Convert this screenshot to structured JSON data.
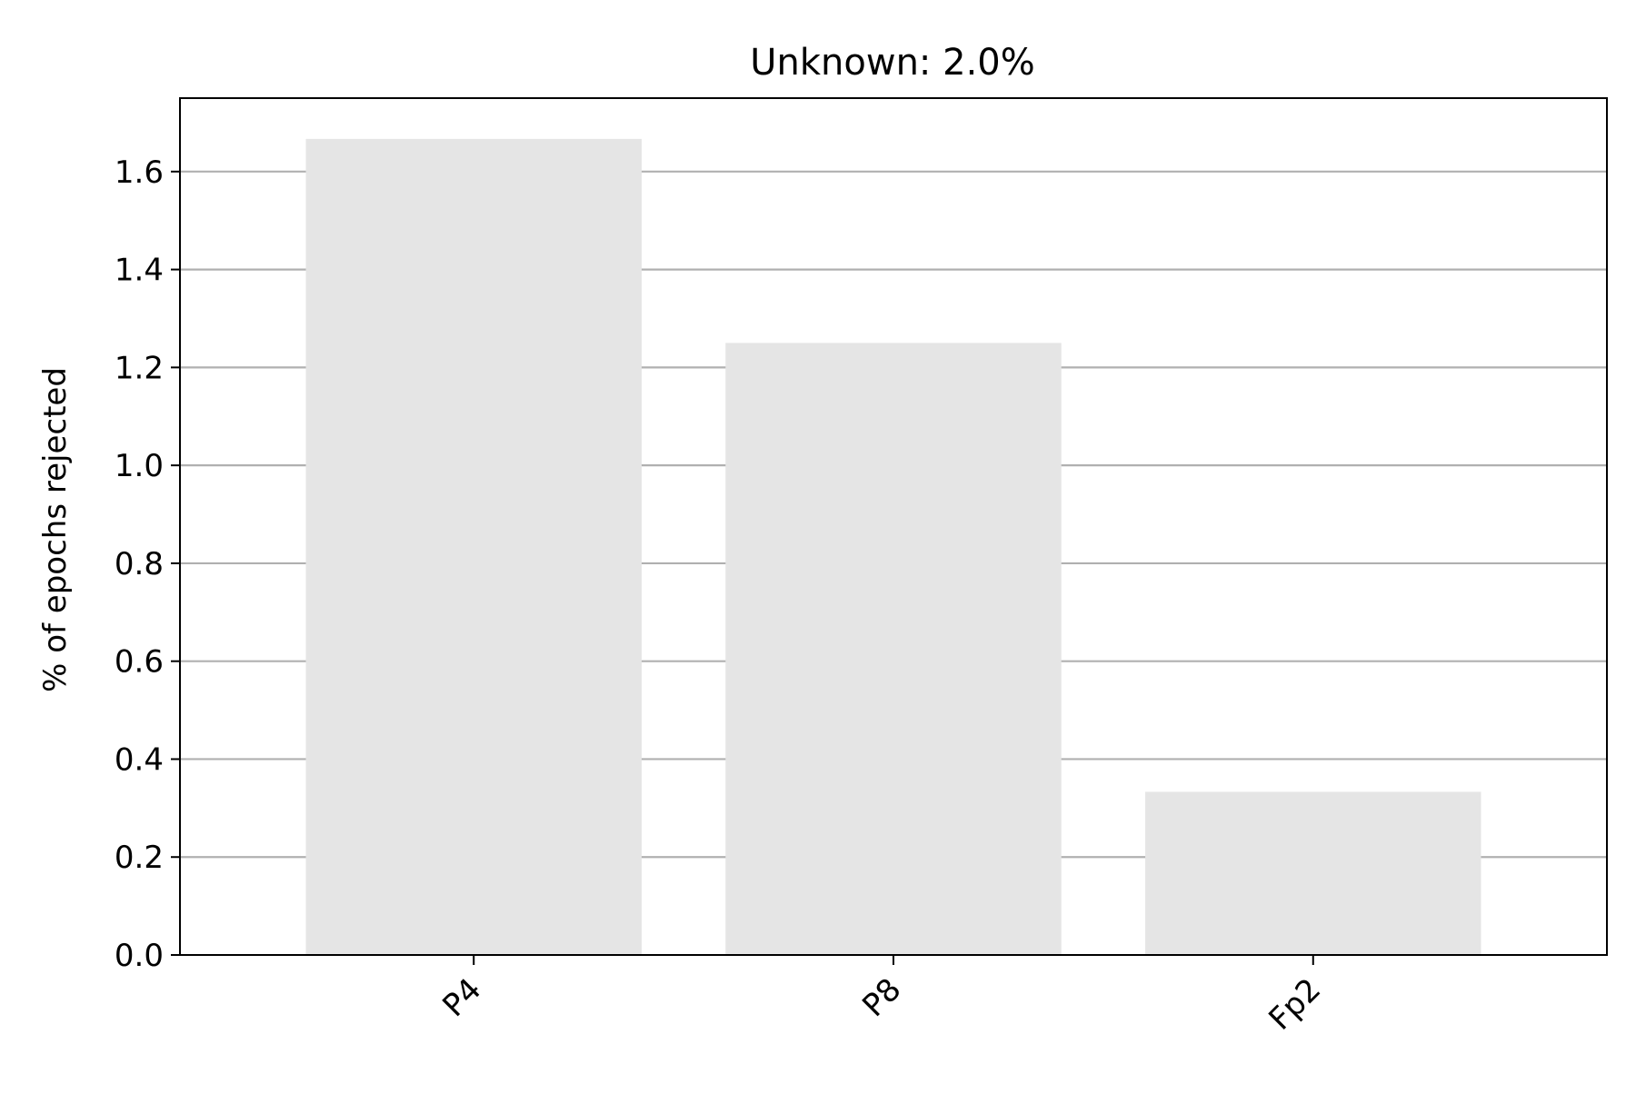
{
  "chart_data": {
    "type": "bar",
    "title": "Unknown: 2.0%",
    "xlabel": "",
    "ylabel": "% of epochs rejected",
    "categories": [
      "P4",
      "P8",
      "Fp2"
    ],
    "values": [
      1.6667,
      1.25,
      0.3333
    ],
    "ylim": [
      0.0,
      1.75
    ],
    "yticks": [
      0.0,
      0.2,
      0.4,
      0.6,
      0.8,
      1.0,
      1.2,
      1.4,
      1.6
    ],
    "ytick_labels": [
      "0.0",
      "0.2",
      "0.4",
      "0.6",
      "0.8",
      "1.0",
      "1.2",
      "1.4",
      "1.6"
    ],
    "grid": "y-axis horizontal lines",
    "legend": "none",
    "colors": {
      "bar": "#e5e5e5",
      "grid": "#b0b0b0",
      "axes": "#000000"
    }
  }
}
